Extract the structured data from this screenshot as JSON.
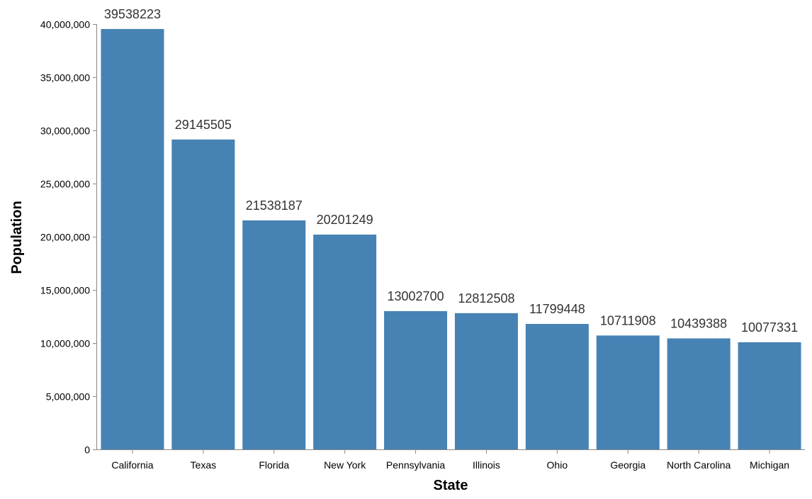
{
  "chart_data": {
    "type": "bar",
    "categories": [
      "California",
      "Texas",
      "Florida",
      "New York",
      "Pennsylvania",
      "Illinois",
      "Ohio",
      "Georgia",
      "North Carolina",
      "Michigan"
    ],
    "values": [
      39538223,
      29145505,
      21538187,
      20201249,
      13002700,
      12812508,
      11799448,
      10711908,
      10439388,
      10077331
    ],
    "data_labels": [
      "39538223",
      "29145505",
      "21538187",
      "20201249",
      "13002700",
      "12812508",
      "11799448",
      "10711908",
      "10439388",
      "10077331"
    ],
    "xlabel": "State",
    "ylabel": "Population",
    "ylim": [
      0,
      40000000
    ],
    "y_ticks": [
      0,
      5000000,
      10000000,
      15000000,
      20000000,
      25000000,
      30000000,
      35000000,
      40000000
    ],
    "y_tick_labels": [
      "0",
      "5,000,000",
      "10,000,000",
      "15,000,000",
      "20,000,000",
      "25,000,000",
      "30,000,000",
      "35,000,000",
      "40,000,000"
    ],
    "grid": false,
    "colors": {
      "bar": "#4682b4",
      "axis": "#888888",
      "data_label": "#333333"
    }
  }
}
